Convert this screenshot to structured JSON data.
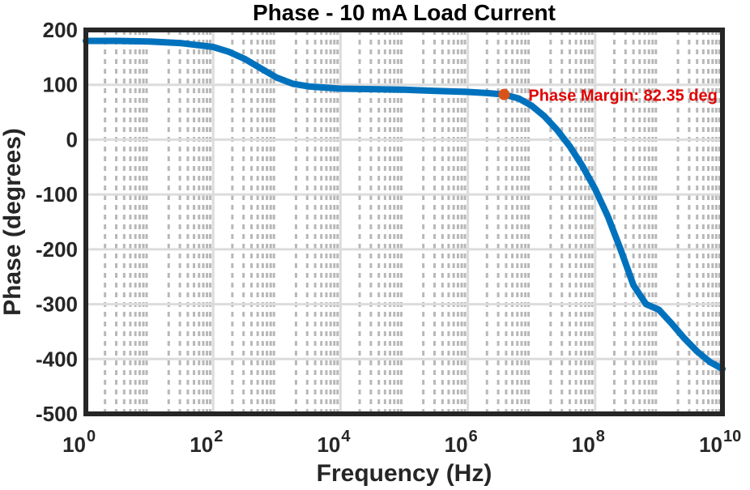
{
  "chart_data": {
    "type": "line",
    "title": "Phase - 10 mA Load Current",
    "xlabel": "Frequency (Hz)",
    "ylabel": "Phase (degrees)",
    "xscale": "log",
    "xlim_exp": [
      0,
      10
    ],
    "ylim": [
      -500,
      200
    ],
    "x_tick_base": "10",
    "x_tick_exponents": [
      "0",
      "2",
      "4",
      "6",
      "8",
      "10"
    ],
    "y_ticks": [
      200,
      100,
      0,
      -100,
      -200,
      -300,
      -400,
      -500
    ],
    "grid": "major and minor, dashed",
    "series": [
      {
        "name": "Phase",
        "color": "#0072BD",
        "log10_freq": [
          0,
          0.5,
          1,
          1.5,
          2,
          2.25,
          2.5,
          2.75,
          3,
          3.25,
          3.5,
          4,
          4.5,
          5,
          5.5,
          6,
          6.3,
          6.57,
          6.8,
          7,
          7.2,
          7.4,
          7.6,
          7.8,
          8,
          8.2,
          8.4,
          8.6,
          8.8,
          9,
          9.2,
          9.4,
          9.6,
          9.8,
          10
        ],
        "phase_deg": [
          180,
          180,
          179,
          176,
          169,
          160,
          147,
          130,
          113,
          102,
          97,
          93,
          92,
          91,
          89,
          87,
          85,
          82.35,
          75,
          62,
          43,
          18,
          -12,
          -48,
          -90,
          -140,
          -200,
          -265,
          -300,
          -310,
          -335,
          -362,
          -386,
          -405,
          -418
        ]
      }
    ],
    "marker": {
      "log10_freq": 6.57,
      "phase_deg": 82.35,
      "color": "#D95319",
      "label": "Phase Margin: 82.35 deg",
      "label_color": "#E00000"
    }
  }
}
